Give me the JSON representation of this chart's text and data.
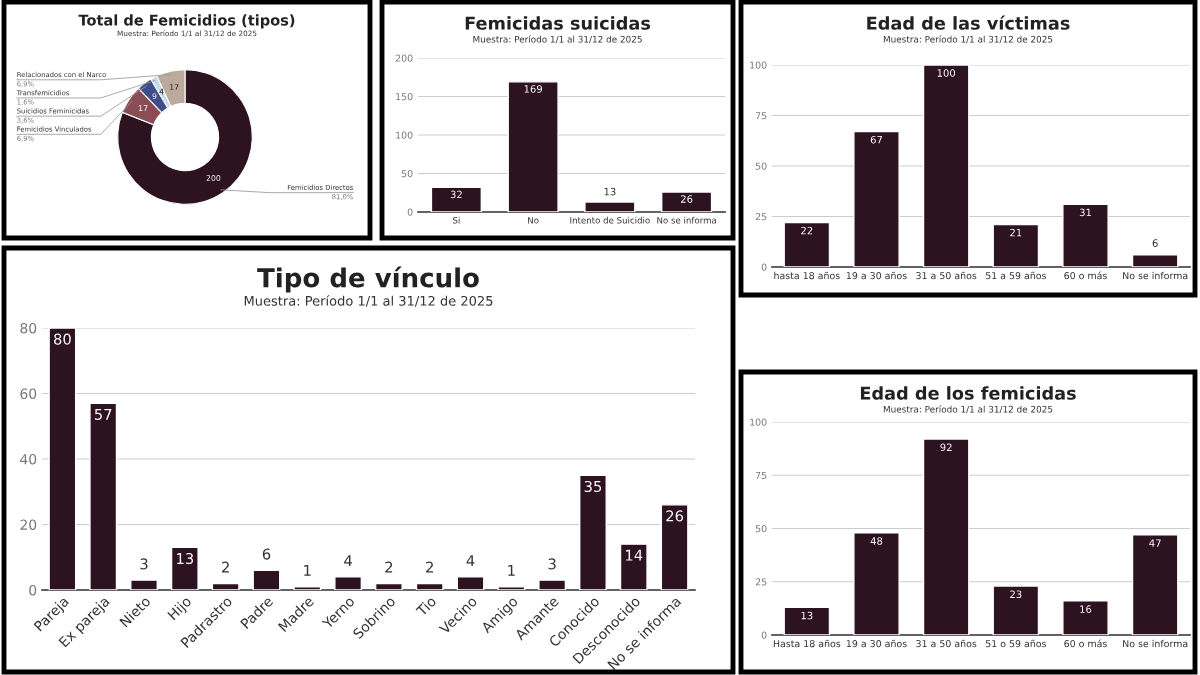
{
  "chart_data": [
    {
      "type": "donut",
      "title": "Total de Femicidios (tipos)",
      "subtitle": "Muestra: Período 1/1 al 31/12 de 2025",
      "categories": [
        "Femicidios Directos",
        "Femicidios Vinculados",
        "Suicidios Feminicidas",
        "Transfemicidios",
        "Relacionados con el Narco"
      ],
      "values": [
        200,
        17,
        9,
        4,
        17
      ],
      "colors": [
        "#2d1320",
        "#8b4d55",
        "#3d4e8a",
        "#c5d9f0",
        "#bcab9a"
      ],
      "data_labels": true,
      "annotations": [
        {
          "text": "81,0%",
          "x": "Femicidios Directos"
        },
        {
          "text": "6,9%",
          "x": "Femicidios Vinculados"
        },
        {
          "text": "3,6%",
          "x": "Suicidios Feminicidas"
        },
        {
          "text": "1,6%",
          "x": "Transfemicidios"
        },
        {
          "text": "6,9%",
          "x": "Relacionados con el Narco"
        }
      ]
    },
    {
      "type": "bar",
      "title": "Femicidas suicidas",
      "subtitle": "Muestra: Período 1/1 al 31/12 de 2025",
      "categories": [
        "Si",
        "No",
        "Intento de Suicidio",
        "No se informa"
      ],
      "values": [
        32,
        169,
        13,
        26
      ],
      "color": "#2d1320",
      "ylim": [
        0,
        200
      ],
      "yticks": [
        0,
        50,
        100,
        150,
        200
      ],
      "grid": "y",
      "data_labels": true
    },
    {
      "type": "bar",
      "title": "Edad de las víctimas",
      "subtitle": "Muestra: Período 1/1 al 31/12 de 2025",
      "categories": [
        "hasta 18 años",
        "19 a 30 años",
        "31 a 50 años",
        "51 a 59 años",
        "60 o más",
        "No se informa"
      ],
      "values": [
        22,
        67,
        100,
        21,
        31,
        6
      ],
      "color": "#2d1320",
      "ylim": [
        0,
        100
      ],
      "yticks": [
        0,
        25,
        50,
        75,
        100
      ],
      "grid": "y",
      "data_labels": true
    },
    {
      "type": "bar",
      "title": "Tipo de vínculo",
      "subtitle": "Muestra: Período 1/1 al 31/12 de 2025",
      "categories": [
        "Pareja",
        "Ex pareja",
        "Nieto",
        "Hijo",
        "Padrastro",
        "Padre",
        "Madre",
        "Yerno",
        "Sobrino",
        "Tio",
        "Vecino",
        "Amigo",
        "Amante",
        "Conocido",
        "Desconocido",
        "No se informa"
      ],
      "values": [
        80,
        57,
        3,
        13,
        2,
        6,
        1,
        4,
        2,
        2,
        4,
        1,
        3,
        35,
        14,
        26
      ],
      "color": "#2d1320",
      "ylim": [
        0,
        80
      ],
      "yticks": [
        0,
        20,
        40,
        60,
        80
      ],
      "grid": "y",
      "data_labels": true
    },
    {
      "type": "bar",
      "title": "Edad de los femicidas",
      "subtitle": "Muestra: Período 1/1 al 31/12 de 2025",
      "categories": [
        "Hasta 18 años",
        "19 a 30 años",
        "31 a 50 años",
        "51 o 59 años",
        "60 o más",
        "No se informa"
      ],
      "values": [
        13,
        48,
        92,
        23,
        16,
        47
      ],
      "color": "#2d1320",
      "ylim": [
        0,
        100
      ],
      "yticks": [
        0,
        25,
        50,
        75,
        100
      ],
      "grid": "y",
      "data_labels": true
    }
  ]
}
